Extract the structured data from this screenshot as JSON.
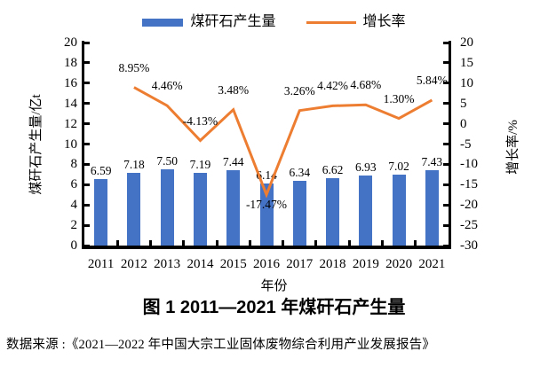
{
  "legend": {
    "production_label": "煤矸石产生量",
    "growth_label": "增长率"
  },
  "axes": {
    "left_title": "煤矸石产生量/亿t",
    "right_title": "增长率/%",
    "x_title": "年份",
    "left_ticks": [
      "20",
      "18",
      "16",
      "14",
      "12",
      "10",
      "8",
      "6",
      "4",
      "2",
      "0"
    ],
    "right_ticks": [
      "20",
      "15",
      "10",
      "5",
      "0",
      "-5",
      "-10",
      "-15",
      "-20",
      "-25",
      "-30"
    ]
  },
  "caption": "图 1  2011—2021 年煤矸石产生量",
  "source": "数据来源 :《2021—2022 年中国大宗工业固体废物综合利用产业发展报告》",
  "colors": {
    "bar": "#4472C4",
    "line": "#ED7D31",
    "axis": "#000000"
  },
  "chart_data": {
    "type": "bar+line",
    "title": "图 1 2011—2021 年煤矸石产生量",
    "xlabel": "年份",
    "ylabel_left": "煤矸石产生量/亿t",
    "ylabel_right": "增长率/%",
    "ylim_left": [
      0,
      20
    ],
    "ylim_right": [
      -30,
      20
    ],
    "grid": false,
    "legend_position": "top",
    "categories": [
      "2011",
      "2012",
      "2013",
      "2014",
      "2015",
      "2016",
      "2017",
      "2018",
      "2019",
      "2020",
      "2021"
    ],
    "series": [
      {
        "name": "煤矸石产生量",
        "type": "bar",
        "axis": "left",
        "values": [
          6.59,
          7.18,
          7.5,
          7.19,
          7.44,
          6.14,
          6.34,
          6.62,
          6.93,
          7.02,
          7.43
        ],
        "labels": [
          "6.59",
          "7.18",
          "7.50",
          "7.19",
          "7.44",
          "6.14",
          "6.34",
          "6.62",
          "6.93",
          "7.02",
          "7.43"
        ]
      },
      {
        "name": "增长率",
        "type": "line",
        "axis": "right",
        "values": [
          null,
          8.95,
          4.46,
          -4.13,
          3.48,
          -17.47,
          3.26,
          4.42,
          4.68,
          1.3,
          5.84
        ],
        "labels": [
          null,
          "8.95%",
          "4.46%",
          "-4.13%",
          "3.48%",
          "-17.47%",
          "3.26%",
          "4.42%",
          "4.68%",
          "1.30%",
          "5.84%"
        ]
      }
    ]
  }
}
